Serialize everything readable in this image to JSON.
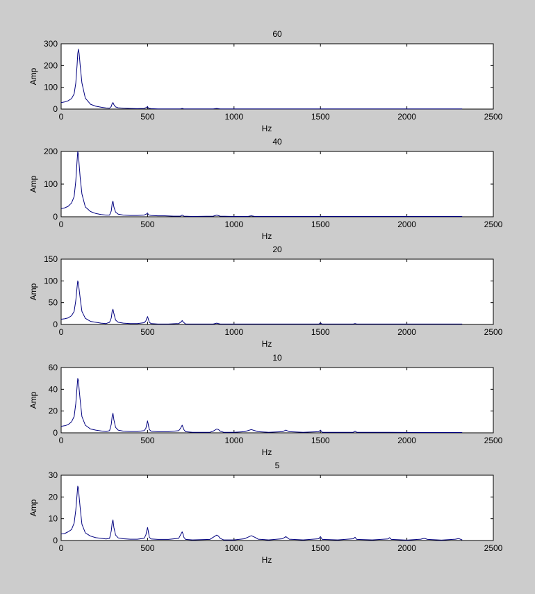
{
  "figure": {
    "background": "#cccccc",
    "axes_background": "#ffffff",
    "line_color": "#00007f",
    "xlabel": "Hz",
    "ylabel": "Amp"
  },
  "chart_data": [
    {
      "type": "line",
      "title": "60",
      "xlabel": "Hz",
      "ylabel": "Amp",
      "xlim": [
        0,
        2500
      ],
      "ylim": [
        0,
        300
      ],
      "xticks": [
        0,
        500,
        1000,
        1500,
        2000,
        2500
      ],
      "yticks": [
        0,
        100,
        200,
        300
      ],
      "series": [
        {
          "x": [
            0,
            20,
            40,
            60,
            75,
            85,
            92,
            96,
            100,
            104,
            110,
            120,
            140,
            170,
            200,
            230,
            260,
            280,
            290,
            295,
            300,
            305,
            315,
            330,
            360,
            400,
            440,
            480,
            495,
            500,
            505,
            520,
            560,
            620,
            690,
            700,
            710,
            760,
            880,
            900,
            920,
            1000,
            1100,
            1300,
            1500,
            1700,
            1900,
            2100,
            2300,
            2320
          ],
          "y": [
            30,
            33,
            38,
            48,
            70,
            120,
            200,
            255,
            275,
            255,
            200,
            120,
            50,
            22,
            13,
            9,
            5,
            4,
            12,
            25,
            30,
            20,
            10,
            6,
            4,
            3,
            2,
            3,
            8,
            12,
            4,
            2,
            1,
            1,
            1,
            3,
            1,
            1,
            1,
            3,
            1,
            1,
            1,
            1,
            1,
            1,
            1,
            1,
            1,
            1
          ]
        }
      ]
    },
    {
      "type": "line",
      "title": "40",
      "xlabel": "Hz",
      "ylabel": "Amp",
      "xlim": [
        0,
        2500
      ],
      "ylim": [
        0,
        200
      ],
      "xticks": [
        0,
        500,
        1000,
        1500,
        2000,
        2500
      ],
      "yticks": [
        0,
        100,
        200
      ],
      "series": [
        {
          "x": [
            0,
            20,
            40,
            60,
            75,
            85,
            92,
            96,
            100,
            104,
            110,
            120,
            140,
            170,
            200,
            230,
            260,
            280,
            290,
            295,
            300,
            305,
            315,
            330,
            360,
            400,
            440,
            480,
            495,
            500,
            505,
            520,
            560,
            600,
            650,
            690,
            700,
            710,
            760,
            880,
            900,
            920,
            1000,
            1080,
            1100,
            1120,
            1300,
            1500,
            1700,
            1900,
            2100,
            2300,
            2320
          ],
          "y": [
            25,
            27,
            32,
            42,
            62,
            110,
            170,
            200,
            190,
            160,
            120,
            70,
            30,
            16,
            10,
            7,
            5,
            5,
            18,
            40,
            48,
            30,
            14,
            8,
            5,
            4,
            4,
            5,
            9,
            12,
            6,
            4,
            3,
            3,
            2,
            2,
            5,
            2,
            1,
            2,
            5,
            2,
            1,
            1,
            3,
            1,
            1,
            1,
            1,
            1,
            1,
            1,
            1
          ]
        }
      ]
    },
    {
      "type": "line",
      "title": "20",
      "xlabel": "Hz",
      "ylabel": "Amp",
      "xlim": [
        0,
        2500
      ],
      "ylim": [
        0,
        150
      ],
      "xticks": [
        0,
        500,
        1000,
        1500,
        2000,
        2500
      ],
      "yticks": [
        0,
        50,
        100,
        150
      ],
      "series": [
        {
          "x": [
            0,
            20,
            40,
            60,
            75,
            85,
            92,
            96,
            100,
            104,
            110,
            120,
            140,
            170,
            200,
            230,
            260,
            280,
            290,
            295,
            300,
            305,
            315,
            330,
            360,
            400,
            440,
            480,
            490,
            495,
            500,
            505,
            510,
            520,
            560,
            620,
            680,
            695,
            700,
            705,
            720,
            760,
            880,
            900,
            920,
            1000,
            1300,
            1490,
            1500,
            1510,
            1690,
            1700,
            1710,
            1900,
            2100,
            2300,
            2320
          ],
          "y": [
            12,
            13,
            15,
            20,
            30,
            55,
            85,
            100,
            95,
            80,
            60,
            30,
            14,
            7,
            5,
            3,
            2,
            5,
            15,
            30,
            35,
            25,
            10,
            5,
            3,
            2,
            2,
            4,
            8,
            14,
            18,
            12,
            5,
            2,
            1,
            1,
            2,
            6,
            9,
            6,
            1,
            1,
            1,
            3,
            1,
            1,
            1,
            1,
            3,
            1,
            1,
            2,
            1,
            1,
            1,
            1,
            1
          ]
        }
      ]
    },
    {
      "type": "line",
      "title": "10",
      "xlabel": "Hz",
      "ylabel": "Amp",
      "xlim": [
        0,
        2500
      ],
      "ylim": [
        0,
        60
      ],
      "xticks": [
        0,
        500,
        1000,
        1500,
        2000,
        2500
      ],
      "yticks": [
        0,
        20,
        40,
        60
      ],
      "series": [
        {
          "x": [
            0,
            20,
            40,
            60,
            75,
            85,
            92,
            96,
            100,
            104,
            110,
            120,
            140,
            170,
            200,
            230,
            260,
            280,
            290,
            295,
            300,
            305,
            315,
            330,
            360,
            400,
            440,
            480,
            490,
            495,
            500,
            505,
            510,
            520,
            560,
            620,
            680,
            690,
            700,
            705,
            710,
            720,
            760,
            860,
            880,
            900,
            910,
            920,
            940,
            1000,
            1060,
            1080,
            1100,
            1120,
            1140,
            1200,
            1280,
            1300,
            1320,
            1400,
            1490,
            1500,
            1510,
            1690,
            1700,
            1710,
            1900,
            2100,
            2300,
            2320
          ],
          "y": [
            6,
            6.5,
            7.5,
            10,
            15,
            27,
            42,
            50,
            48,
            40,
            30,
            15,
            7,
            3.5,
            2.5,
            1.8,
            1.2,
            2,
            8,
            15,
            18,
            12,
            5,
            2.5,
            1.5,
            1.2,
            1.2,
            2,
            4,
            8,
            11,
            7,
            3,
            1.5,
            1,
            1,
            2,
            4,
            7,
            5,
            3,
            1,
            0.5,
            0.5,
            1.5,
            3.5,
            3,
            1.5,
            0.5,
            0.5,
            1,
            2,
            3,
            2,
            1,
            0.5,
            1,
            2.5,
            1,
            0.5,
            1,
            2.5,
            0.5,
            0.5,
            1.5,
            0.5,
            0.5,
            0.3,
            0.3,
            0.3
          ]
        }
      ]
    },
    {
      "type": "line",
      "title": "5",
      "xlabel": "Hz",
      "ylabel": "Amp",
      "xlim": [
        0,
        2500
      ],
      "ylim": [
        0,
        30
      ],
      "xticks": [
        0,
        500,
        1000,
        1500,
        2000,
        2500
      ],
      "yticks": [
        0,
        10,
        20,
        30
      ],
      "series": [
        {
          "x": [
            0,
            20,
            40,
            60,
            75,
            85,
            92,
            96,
            100,
            104,
            110,
            120,
            140,
            170,
            200,
            230,
            260,
            280,
            290,
            295,
            300,
            305,
            315,
            330,
            360,
            400,
            440,
            480,
            490,
            495,
            500,
            505,
            510,
            520,
            560,
            620,
            680,
            690,
            700,
            705,
            710,
            720,
            760,
            860,
            880,
            900,
            910,
            920,
            940,
            1000,
            1060,
            1080,
            1100,
            1120,
            1140,
            1200,
            1280,
            1300,
            1320,
            1400,
            1490,
            1500,
            1510,
            1600,
            1690,
            1700,
            1710,
            1800,
            1890,
            1900,
            1910,
            2000,
            2080,
            2100,
            2120,
            2200,
            2280,
            2300,
            2320
          ],
          "y": [
            3,
            3.2,
            4,
            5,
            8,
            14,
            21,
            25,
            24,
            20,
            15,
            7.5,
            3.5,
            2,
            1.3,
            1,
            0.7,
            1,
            4.5,
            8,
            9.5,
            6,
            2.5,
            1.2,
            0.8,
            0.6,
            0.6,
            1,
            2.5,
            4.5,
            6,
            4,
            1.5,
            0.7,
            0.5,
            0.5,
            1,
            2.5,
            4,
            3,
            1.5,
            0.5,
            0.3,
            0.5,
            1.5,
            2.5,
            2,
            1,
            0.3,
            0.3,
            0.8,
            1.5,
            2.2,
            1.5,
            0.6,
            0.3,
            0.8,
            1.8,
            0.6,
            0.3,
            0.8,
            1.8,
            0.5,
            0.3,
            0.8,
            1.5,
            0.5,
            0.3,
            0.7,
            1.3,
            0.5,
            0.2,
            0.6,
            1,
            0.5,
            0.2,
            0.6,
            0.9,
            0.3
          ]
        }
      ]
    }
  ]
}
